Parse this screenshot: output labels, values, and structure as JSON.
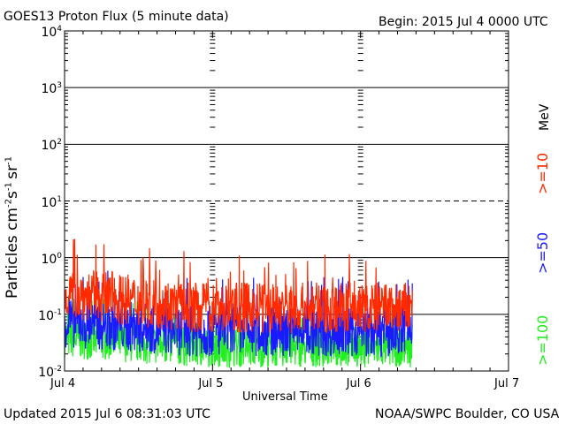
{
  "header": {
    "title": "GOES13 Proton Flux (5 minute data)",
    "begin": "Begin: 2015 Jul 4 0000 UTC"
  },
  "footer": {
    "updated": "Updated 2015 Jul  6 08:31:03 UTC",
    "source": "NOAA/SWPC Boulder, CO USA"
  },
  "colors": {
    "gt10": "#ff2a00",
    "gt50": "#1a1aff",
    "gt100": "#22ee22"
  },
  "chart_data": {
    "type": "line",
    "xlabel": "Universal Time",
    "ylabel_base": "Particles cm",
    "ylabel_sup1": "-2",
    "ylabel_mid1": "s",
    "ylabel_sup2": "-1",
    "ylabel_mid2": "sr",
    "ylabel_sup3": "-1",
    "y_scale": "log",
    "ylim": [
      0.01,
      10000
    ],
    "xlim_days": [
      0,
      3
    ],
    "x_ticks": [
      {
        "day": 0,
        "label": "Jul 4"
      },
      {
        "day": 1,
        "label": "Jul 5"
      },
      {
        "day": 2,
        "label": "Jul 6"
      },
      {
        "day": 3,
        "label": "Jul 7"
      }
    ],
    "y_ticks": [
      {
        "exp": 4,
        "base": "10",
        "sup": "4"
      },
      {
        "exp": 3,
        "base": "10",
        "sup": "3"
      },
      {
        "exp": 2,
        "base": "10",
        "sup": "2"
      },
      {
        "exp": 1,
        "base": "10",
        "sup": "1"
      },
      {
        "exp": 0,
        "base": "10",
        "sup": "0"
      },
      {
        "exp": -1,
        "base": "10",
        "sup": "-1"
      },
      {
        "exp": -2,
        "base": "10",
        "sup": "-2"
      }
    ],
    "threshold_levels": [
      10,
      1,
      0.1
    ],
    "unit_label": "MeV",
    "series": [
      {
        "name": ">=10",
        "color_key": "gt10",
        "level": 0.13,
        "spread": 0.45,
        "data_end_day": 2.35
      },
      {
        "name": ">=50",
        "color_key": "gt50",
        "level": 0.05,
        "spread": 0.45,
        "data_end_day": 2.35
      },
      {
        "name": ">=100",
        "color_key": "gt100",
        "level": 0.026,
        "spread": 0.35,
        "data_end_day": 2.35
      }
    ]
  }
}
